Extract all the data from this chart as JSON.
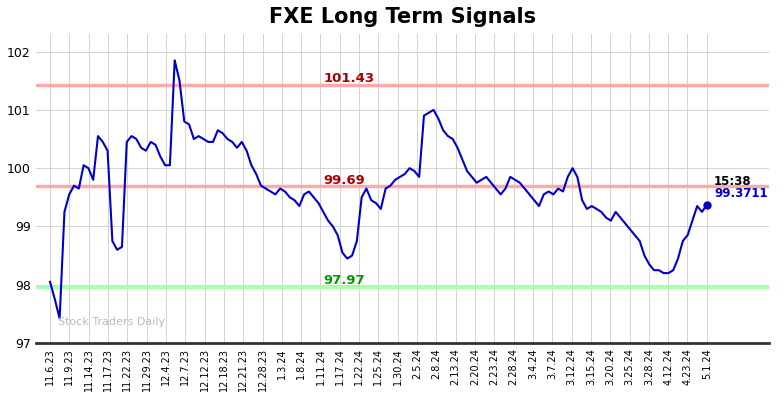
{
  "title": "FXE Long Term Signals",
  "title_fontsize": 15,
  "line_color": "#0000cc",
  "line_width": 1.5,
  "background_color": "#ffffff",
  "grid_color": "#cccccc",
  "hline_red": 101.43,
  "hline_red2": 99.69,
  "hline_green": 97.97,
  "hline_red_color": "#ffaaaa",
  "hline_green_color": "#aaffaa",
  "hline_red_lw": 2.5,
  "hline_green_lw": 2.5,
  "annotation_red_high_text": "101.43",
  "annotation_red_high_color": "#aa0000",
  "annotation_red_low_text": "99.69",
  "annotation_red_low_color": "#aa0000",
  "annotation_green_text": "97.97",
  "annotation_green_color": "#009900",
  "annotation_last_time_text": "15:38",
  "annotation_last_time_color": "#000000",
  "annotation_last_price_text": "99.3711",
  "annotation_last_price_color": "#0000cc",
  "last_marker_color": "#0000cc",
  "watermark": "Stock Traders Daily",
  "watermark_color": "#bbbbbb",
  "ylim": [
    97.0,
    102.3
  ],
  "yticks": [
    97,
    98,
    99,
    100,
    101,
    102
  ],
  "x_labels": [
    "11.6.23",
    "11.9.23",
    "11.14.23",
    "11.17.23",
    "11.22.23",
    "11.29.23",
    "12.4.23",
    "12.7.23",
    "12.12.23",
    "12.18.23",
    "12.21.23",
    "12.28.23",
    "1.3.24",
    "1.8.24",
    "1.11.24",
    "1.17.24",
    "1.22.24",
    "1.25.24",
    "1.30.24",
    "2.5.24",
    "2.8.24",
    "2.13.24",
    "2.20.24",
    "2.23.24",
    "2.28.24",
    "3.4.24",
    "3.7.24",
    "3.12.24",
    "3.15.24",
    "3.20.24",
    "3.25.24",
    "3.28.24",
    "4.12.24",
    "4.23.24",
    "5.1.24"
  ],
  "y_values": [
    98.05,
    97.75,
    97.42,
    99.25,
    99.55,
    99.7,
    99.65,
    100.05,
    100.0,
    99.8,
    100.55,
    100.45,
    100.3,
    98.75,
    98.6,
    98.65,
    100.45,
    100.55,
    100.5,
    100.35,
    100.3,
    100.45,
    100.4,
    100.2,
    100.05,
    100.05,
    101.85,
    101.5,
    100.8,
    100.75,
    100.5,
    100.55,
    100.5,
    100.45,
    100.45,
    100.65,
    100.6,
    100.5,
    100.45,
    100.35,
    100.45,
    100.3,
    100.05,
    99.9,
    99.7,
    99.65,
    99.6,
    99.55,
    99.65,
    99.6,
    99.5,
    99.45,
    99.35,
    99.55,
    99.6,
    99.5,
    99.4,
    99.25,
    99.1,
    99.0,
    98.85,
    98.55,
    98.45,
    98.5,
    98.75,
    99.5,
    99.65,
    99.45,
    99.4,
    99.3,
    99.65,
    99.7,
    99.8,
    99.85,
    99.9,
    100.0,
    99.95,
    99.85,
    100.9,
    100.95,
    101.0,
    100.85,
    100.65,
    100.55,
    100.5,
    100.35,
    100.15,
    99.95,
    99.85,
    99.75,
    99.8,
    99.85,
    99.75,
    99.65,
    99.55,
    99.65,
    99.85,
    99.8,
    99.75,
    99.65,
    99.55,
    99.45,
    99.35,
    99.55,
    99.6,
    99.55,
    99.65,
    99.6,
    99.85,
    100.0,
    99.85,
    99.45,
    99.3,
    99.35,
    99.3,
    99.25,
    99.15,
    99.1,
    99.25,
    99.15,
    99.05,
    98.95,
    98.85,
    98.75,
    98.5,
    98.35,
    98.25,
    98.25,
    98.2,
    98.2,
    98.25,
    98.45,
    98.75,
    98.85,
    99.1,
    99.35,
    99.25,
    99.3711
  ],
  "ann_red_high_xi": 0.42,
  "ann_red_low_xi": 0.42,
  "ann_green_xi": 0.42
}
